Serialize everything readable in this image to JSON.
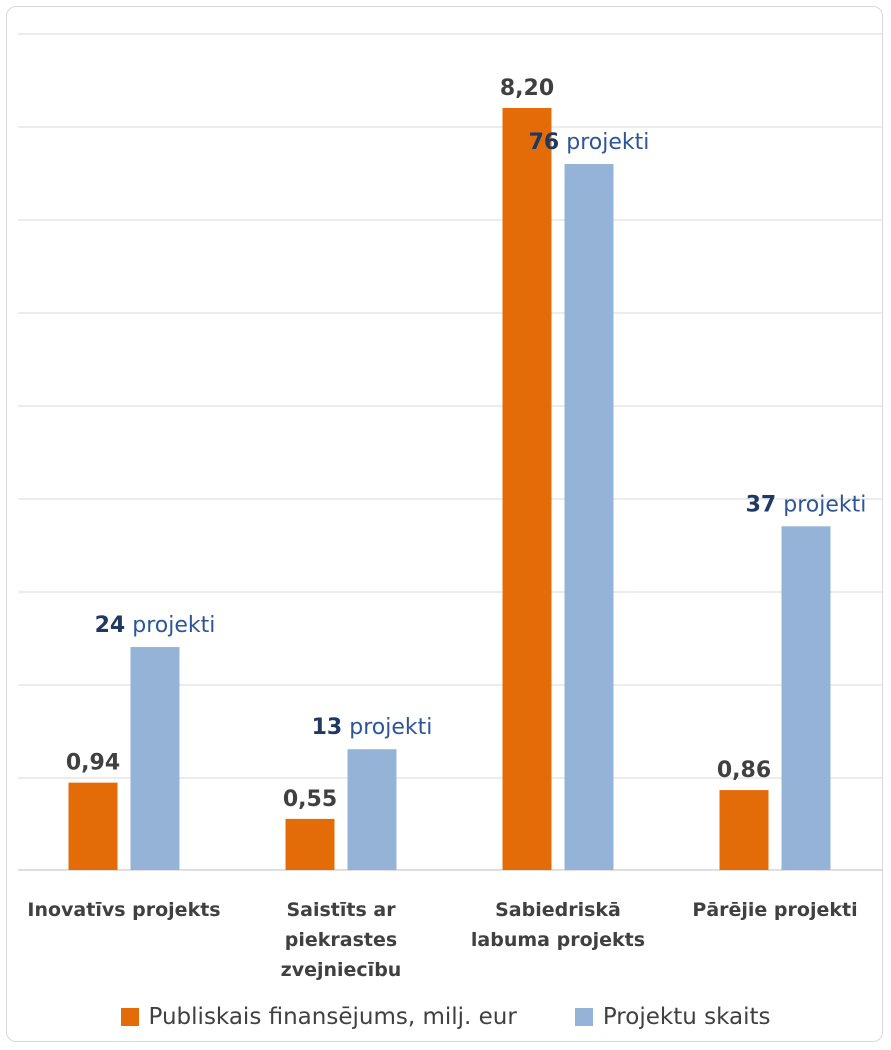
{
  "chart_data": {
    "type": "bar",
    "categories": [
      [
        "Inovatīvs projekts"
      ],
      [
        "Saistīts ar",
        "piekrastes",
        "zvejniecību"
      ],
      [
        "Sabiedriskā",
        "labuma projekts"
      ],
      [
        "Pārējie projekti"
      ]
    ],
    "series": [
      {
        "name": "Publiskais finansējums, milj. eur",
        "color": "#e36c09",
        "values": [
          0.94,
          0.55,
          8.2,
          0.86
        ],
        "labels": [
          "0,94",
          "0,55",
          "8,20",
          "0,86"
        ]
      },
      {
        "name": "Projektu skaits",
        "color": "#95b3d7",
        "values": [
          24,
          13,
          76,
          37
        ],
        "labels": [
          "24",
          "13",
          "76",
          "37"
        ],
        "label_suffix": "projekti"
      }
    ],
    "grid": true,
    "legend": "bottom"
  }
}
